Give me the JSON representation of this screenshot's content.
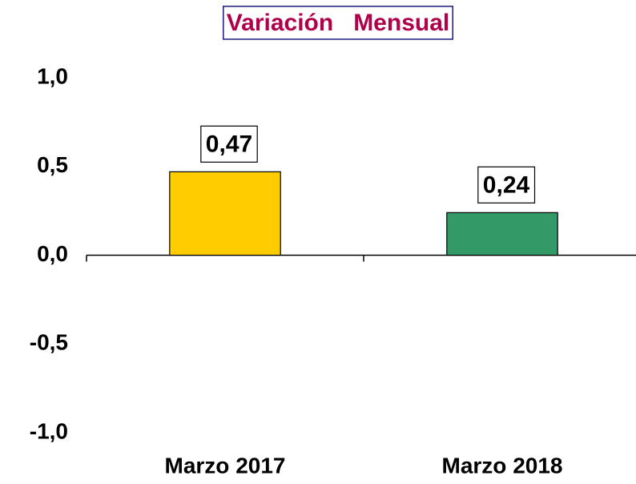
{
  "chart_data": {
    "type": "bar",
    "title": "Variación   Mensual",
    "categories": [
      "Marzo 2017",
      "Marzo 2018"
    ],
    "values": [
      0.47,
      0.24
    ],
    "value_labels": [
      "0,47",
      "0,24"
    ],
    "colors": [
      "#ffcc00",
      "#339966"
    ],
    "ylim": [
      -1.0,
      1.0
    ],
    "yticks": [
      {
        "value": -1.0,
        "label": "-1,0"
      },
      {
        "value": -0.5,
        "label": "-0,5"
      },
      {
        "value": 0.0,
        "label": "0,0"
      },
      {
        "value": 0.5,
        "label": "0,5"
      },
      {
        "value": 1.0,
        "label": "1,0"
      }
    ],
    "grid": false
  }
}
